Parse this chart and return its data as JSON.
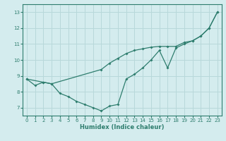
{
  "xlabel": "Humidex (Indice chaleur)",
  "bg_color": "#d4ecee",
  "grid_color": "#b8d8da",
  "line_color": "#2e7d6e",
  "xlim": [
    -0.5,
    23.5
  ],
  "ylim": [
    6.5,
    13.5
  ],
  "xticks": [
    0,
    1,
    2,
    3,
    4,
    5,
    6,
    7,
    8,
    9,
    10,
    11,
    12,
    13,
    14,
    15,
    16,
    17,
    18,
    19,
    20,
    21,
    22,
    23
  ],
  "yticks": [
    7,
    8,
    9,
    10,
    11,
    12,
    13
  ],
  "line1_x": [
    0,
    1,
    2,
    3,
    4,
    5,
    6,
    7,
    8,
    9,
    10,
    11,
    12,
    13,
    14,
    15,
    16,
    17,
    18,
    19,
    20,
    21,
    22,
    23
  ],
  "line1_y": [
    8.8,
    8.4,
    8.6,
    8.5,
    7.9,
    7.7,
    7.4,
    7.2,
    7.0,
    6.8,
    7.1,
    7.2,
    8.8,
    9.1,
    9.5,
    10.0,
    10.6,
    9.5,
    10.75,
    11.0,
    11.2,
    11.5,
    12.0,
    13.0
  ],
  "line2_x": [
    0,
    2,
    3,
    9,
    10,
    11,
    12,
    13,
    14,
    15,
    16,
    17,
    18,
    19,
    20,
    21,
    22,
    23
  ],
  "line2_y": [
    8.8,
    8.6,
    8.5,
    9.4,
    9.8,
    10.1,
    10.4,
    10.6,
    10.7,
    10.8,
    10.85,
    10.85,
    10.85,
    11.1,
    11.2,
    11.5,
    12.0,
    13.0
  ]
}
